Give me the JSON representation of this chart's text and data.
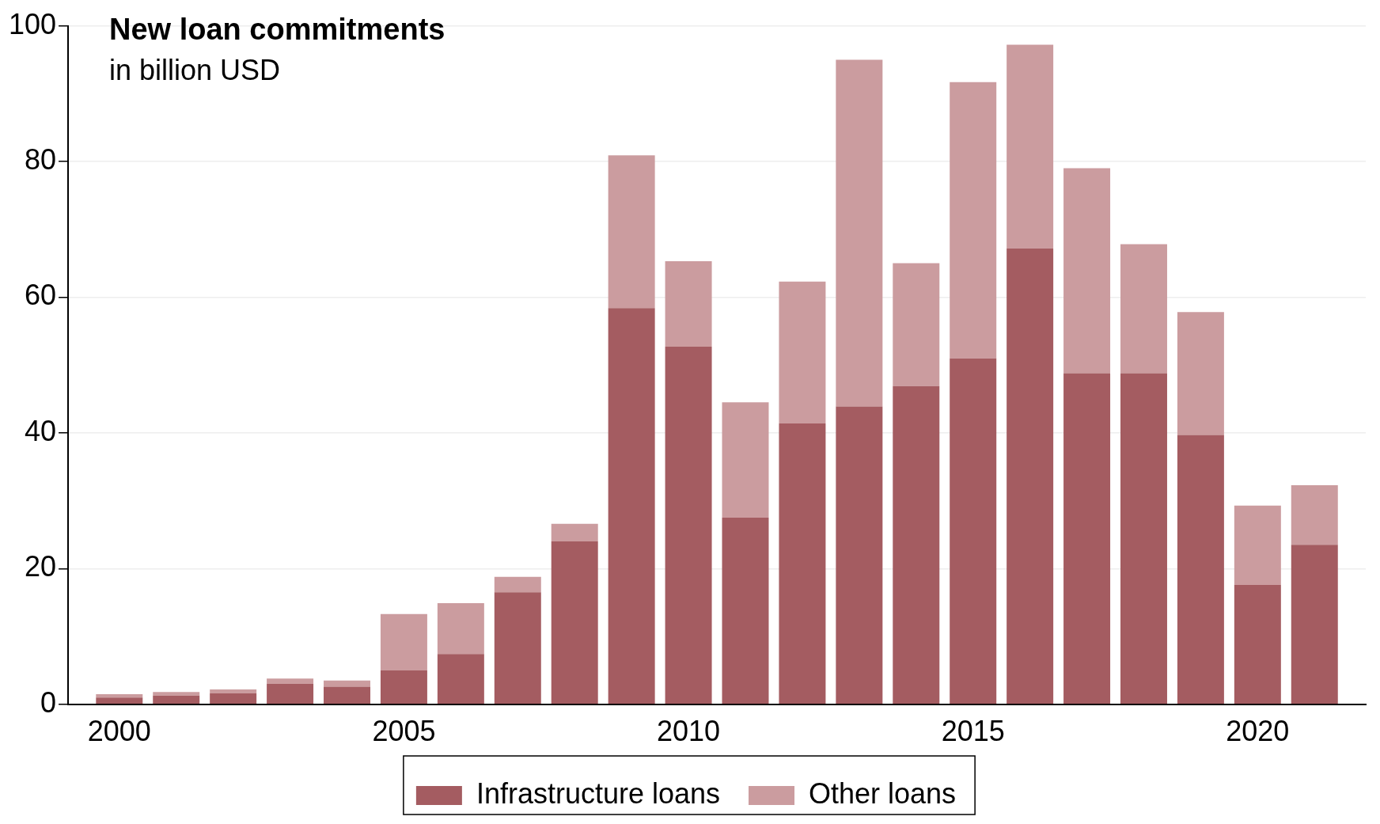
{
  "chart_data": {
    "type": "bar",
    "title": "New loan commitments",
    "subtitle": "in billion USD",
    "stacked": true,
    "x": [
      2000,
      2001,
      2002,
      2003,
      2004,
      2005,
      2006,
      2007,
      2008,
      2009,
      2010,
      2011,
      2012,
      2013,
      2014,
      2015,
      2016,
      2017,
      2018,
      2019,
      2020,
      2021
    ],
    "series": [
      {
        "name": "Infrastructure loans",
        "color": "#a45c61",
        "values": [
          1.0,
          1.3,
          1.6,
          3.0,
          2.6,
          5.0,
          7.4,
          16.5,
          24.0,
          58.4,
          52.7,
          27.5,
          41.4,
          43.9,
          46.9,
          51.0,
          67.2,
          48.8,
          48.8,
          39.7,
          17.6,
          23.5
        ]
      },
      {
        "name": "Other loans",
        "color": "#cb9c9f",
        "values": [
          0.5,
          0.5,
          0.6,
          0.8,
          0.9,
          8.3,
          7.5,
          2.3,
          2.6,
          22.5,
          12.6,
          17.0,
          20.9,
          51.1,
          18.1,
          40.7,
          30.0,
          30.2,
          19.0,
          18.1,
          11.7,
          8.8
        ]
      }
    ],
    "xlim": [
      1999.1,
      2021.9
    ],
    "xticks": [
      2000,
      2005,
      2010,
      2015,
      2020
    ],
    "ylim": [
      0,
      100
    ],
    "yticks": [
      0,
      20,
      40,
      60,
      80,
      100
    ],
    "grid": "y",
    "legend": "bottom"
  }
}
